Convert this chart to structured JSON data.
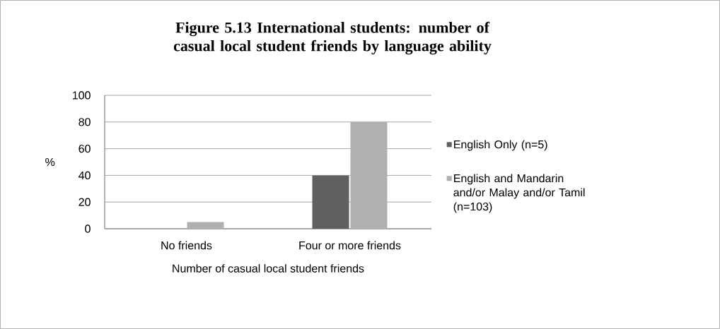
{
  "chart_data": {
    "type": "bar",
    "title": "Figure 5.13 International students: number of casual local student friends by language ability",
    "xlabel": "Number of casual local student friends",
    "ylabel": "%",
    "categories": [
      "No friends",
      "Four or more friends"
    ],
    "series": [
      {
        "name": "English Only (n=5)",
        "color": "#606060",
        "values": [
          0,
          40
        ]
      },
      {
        "name": "English and Mandarin and/or Malay and/or Tamil (n=103)",
        "color": "#b0b0b0",
        "values": [
          5,
          80
        ]
      }
    ],
    "ylim": [
      0,
      100
    ],
    "yticks": [
      0,
      20,
      40,
      60,
      80,
      100
    ],
    "grid": "y",
    "legend": "right"
  }
}
